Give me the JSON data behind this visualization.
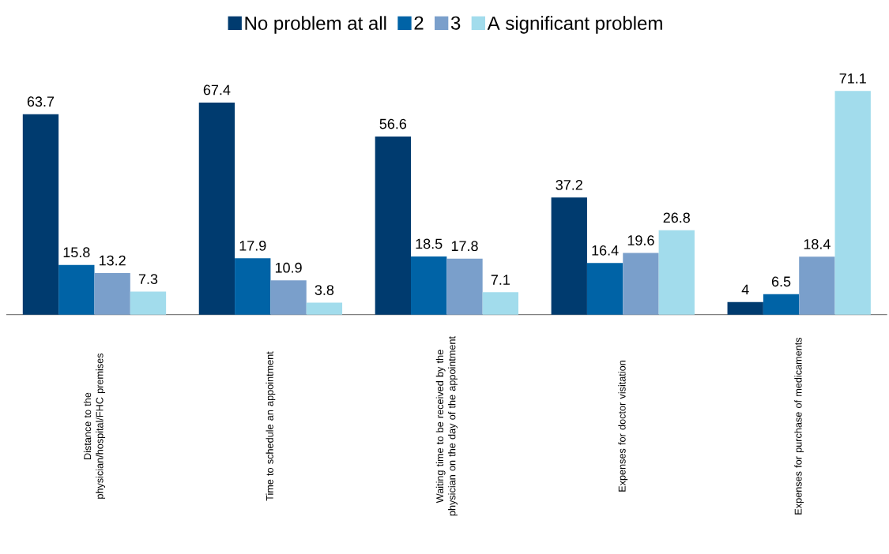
{
  "chart_data": {
    "type": "bar",
    "categories": [
      "Distance to the physician/hospital/FHC premises",
      "Time to schedule an appointment",
      "Waiting time to be received by the physician on the day of the appointment",
      "Expenses for doctor visitation",
      "Expenses for purchase of medicaments"
    ],
    "series": [
      {
        "name": "No problem at all",
        "color": "#003b6f",
        "values": [
          63.7,
          67.4,
          56.6,
          37.2,
          4
        ]
      },
      {
        "name": "2",
        "color": "#0063a6",
        "values": [
          15.8,
          17.9,
          18.5,
          16.4,
          6.5
        ]
      },
      {
        "name": "3",
        "color": "#7a9fcb",
        "values": [
          13.2,
          10.9,
          17.8,
          19.6,
          18.4
        ]
      },
      {
        "name": "A significant problem",
        "color": "#a2dcec",
        "values": [
          7.3,
          3.8,
          7.1,
          26.8,
          71.1
        ]
      }
    ],
    "data_labels": true,
    "legend": "top"
  }
}
